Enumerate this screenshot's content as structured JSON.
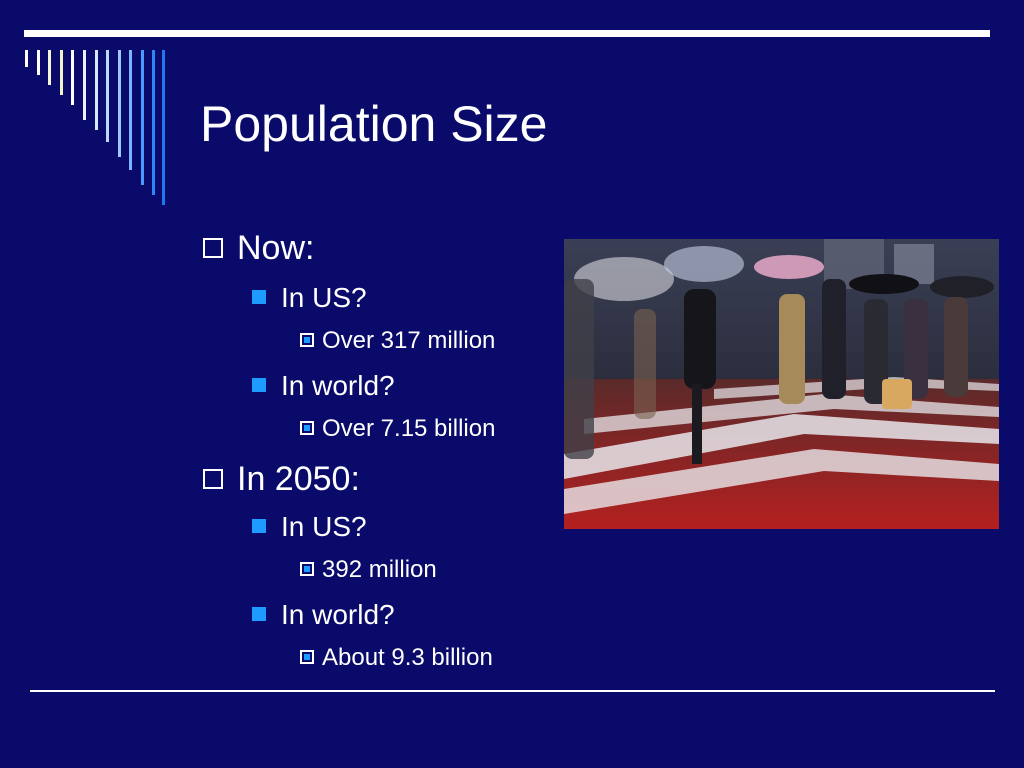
{
  "slide": {
    "title": "Population Size",
    "sections": [
      {
        "label": "Now:",
        "items": [
          {
            "question": "In US?",
            "answer": "Over 317 million"
          },
          {
            "question": "In world?",
            "answer": "Over 7.15 billion"
          }
        ]
      },
      {
        "label": "In 2050:",
        "items": [
          {
            "question": "In US?",
            "answer": "392 million"
          },
          {
            "question": "In world?",
            "answer": "About 9.3 billion"
          }
        ]
      }
    ]
  },
  "colors": {
    "background": "#0a0a6b",
    "text": "#ffffff",
    "accent_bullet": "#1e9bff"
  },
  "icons": {
    "level1_marker": "hollow-square",
    "level2_marker": "filled-square",
    "level3_marker": "boxed-square"
  },
  "photo": {
    "subject": "pedestrians with umbrellas crossing a rainy crosswalk at night"
  }
}
